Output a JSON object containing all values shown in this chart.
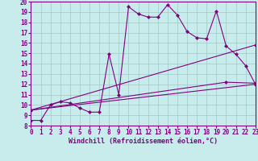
{
  "background_color": "#c8ecec",
  "grid_color": "#a0c8c8",
  "line_color": "#800080",
  "xlabel": "Windchill (Refroidissement éolien,°C)",
  "xlim": [
    0,
    23
  ],
  "ylim": [
    8,
    20
  ],
  "xticks": [
    0,
    1,
    2,
    3,
    4,
    5,
    6,
    7,
    8,
    9,
    10,
    11,
    12,
    13,
    14,
    15,
    16,
    17,
    18,
    19,
    20,
    21,
    22,
    23
  ],
  "yticks": [
    8,
    9,
    10,
    11,
    12,
    13,
    14,
    15,
    16,
    17,
    18,
    19,
    20
  ],
  "line1_x": [
    0,
    1,
    2,
    3,
    4,
    5,
    6,
    7,
    8,
    9,
    10,
    11,
    12,
    13,
    14,
    15,
    16,
    17,
    18,
    19,
    20,
    21,
    22,
    23
  ],
  "line1_y": [
    8.5,
    8.5,
    10.0,
    10.3,
    10.2,
    9.7,
    9.3,
    9.3,
    14.9,
    11.0,
    19.5,
    18.8,
    18.5,
    18.5,
    19.7,
    18.7,
    17.1,
    16.5,
    16.4,
    19.1,
    15.7,
    14.9,
    13.8,
    12.0
  ],
  "line2_x": [
    0,
    23
  ],
  "line2_y": [
    9.5,
    12.0
  ],
  "line3_x": [
    0,
    23
  ],
  "line3_y": [
    9.5,
    15.8
  ],
  "line4_x": [
    0,
    20,
    23
  ],
  "line4_y": [
    9.5,
    12.2,
    12.1
  ],
  "markersize": 2.5
}
